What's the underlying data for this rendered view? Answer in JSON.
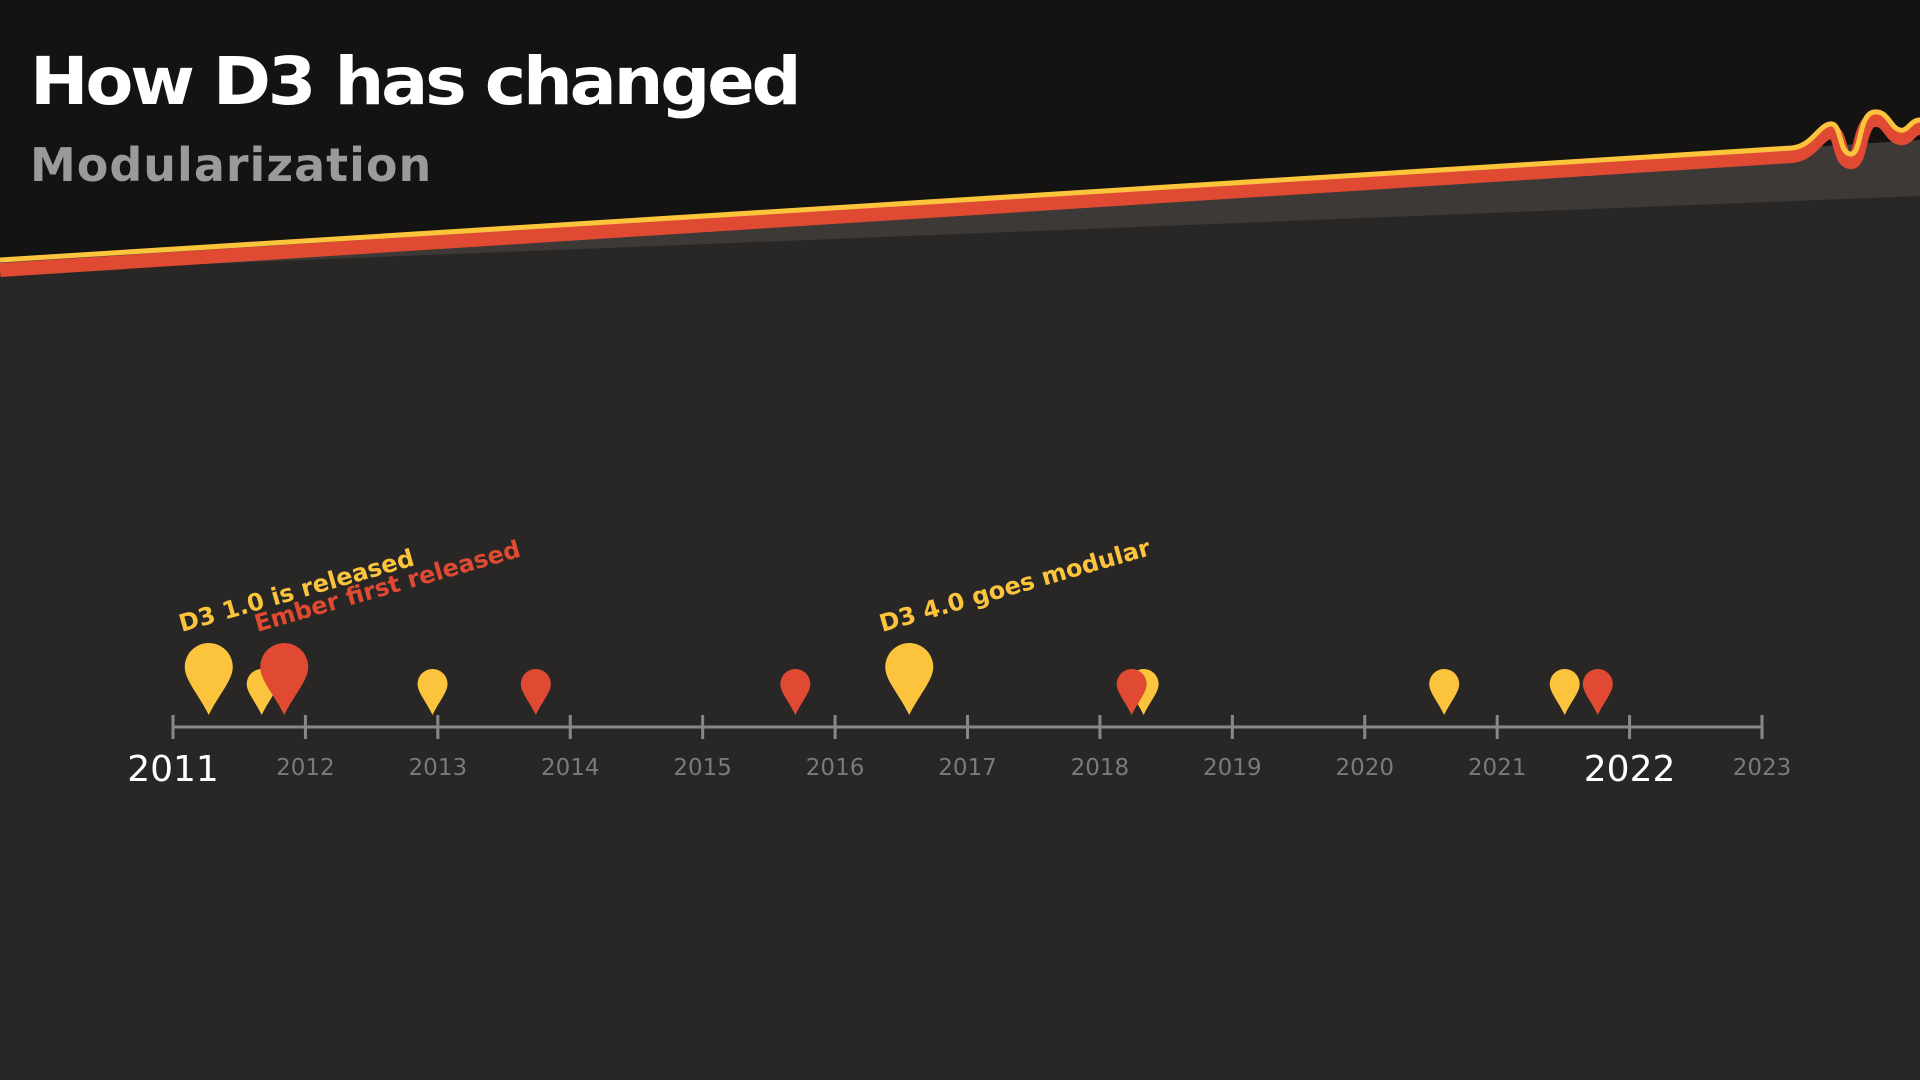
{
  "header": {
    "title": "How D3 has changed",
    "subtitle": "Modularization"
  },
  "colors": {
    "background_top": "#141312",
    "background_bottom": "#282725",
    "band": "#3c3937",
    "stripe_red": "#e04a33",
    "stripe_yellow": "#fcc43d",
    "d3": "#fcc43d",
    "ember": "#e04a33",
    "axis": "#8a8886",
    "minor_label": "#7c7a78",
    "major_label": "#ffffff"
  },
  "timeline": {
    "start_year": 2011,
    "end_year": 2023,
    "ticks": [
      {
        "year": 2011,
        "label": "2011",
        "major": true
      },
      {
        "year": 2012,
        "label": "2012",
        "major": false
      },
      {
        "year": 2013,
        "label": "2013",
        "major": false
      },
      {
        "year": 2014,
        "label": "2014",
        "major": false
      },
      {
        "year": 2015,
        "label": "2015",
        "major": false
      },
      {
        "year": 2016,
        "label": "2016",
        "major": false
      },
      {
        "year": 2017,
        "label": "2017",
        "major": false
      },
      {
        "year": 2018,
        "label": "2018",
        "major": false
      },
      {
        "year": 2019,
        "label": "2019",
        "major": false
      },
      {
        "year": 2020,
        "label": "2020",
        "major": false
      },
      {
        "year": 2021,
        "label": "2021",
        "major": false
      },
      {
        "year": 2022,
        "label": "2022",
        "major": true
      },
      {
        "year": 2023,
        "label": "2023",
        "major": false
      }
    ],
    "markers": [
      {
        "id": "d3-1",
        "lib": "d3",
        "year": 2011.27,
        "big": true,
        "label": "D3 1.0 is released"
      },
      {
        "id": "d3-2",
        "lib": "d3",
        "year": 2011.67,
        "big": false
      },
      {
        "id": "ember-1",
        "lib": "ember",
        "year": 2011.84,
        "big": true,
        "label": "Ember first released"
      },
      {
        "id": "d3-3",
        "lib": "d3",
        "year": 2012.96,
        "big": false
      },
      {
        "id": "ember-2",
        "lib": "ember",
        "year": 2013.74,
        "big": false
      },
      {
        "id": "ember-3",
        "lib": "ember",
        "year": 2015.7,
        "big": false
      },
      {
        "id": "d3-4",
        "lib": "d3",
        "year": 2016.56,
        "big": true,
        "label": "D3 4.0 goes modular"
      },
      {
        "id": "d3-5",
        "lib": "d3",
        "year": 2018.33,
        "big": false
      },
      {
        "id": "ember-4",
        "lib": "ember",
        "year": 2018.24,
        "big": false
      },
      {
        "id": "d3-6",
        "lib": "d3",
        "year": 2020.6,
        "big": false
      },
      {
        "id": "d3-7",
        "lib": "d3",
        "year": 2021.51,
        "big": false
      },
      {
        "id": "ember-5",
        "lib": "ember",
        "year": 2021.76,
        "big": false
      }
    ]
  }
}
